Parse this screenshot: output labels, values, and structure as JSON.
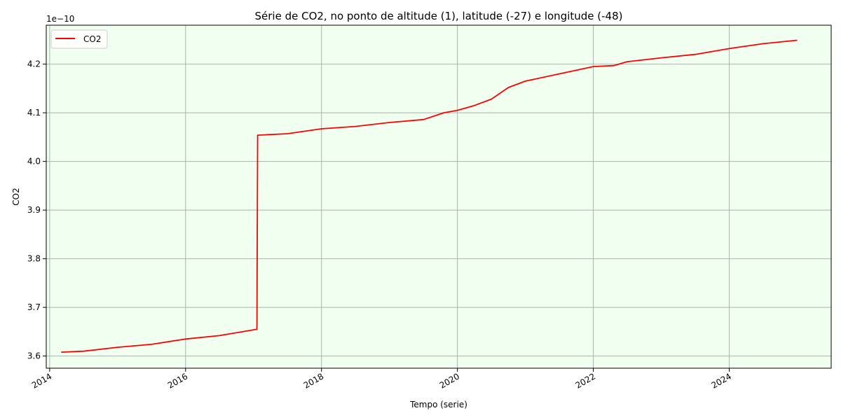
{
  "chart_data": {
    "type": "line",
    "title": "Série de CO2, no ponto de altitude (1), latitude (-27) e longitude (-48)",
    "xlabel": "Tempo (serie)",
    "ylabel": "CO2",
    "y_scale_label": "1e−10",
    "xlim": [
      2013.95,
      2025.5
    ],
    "ylim": [
      3.575,
      4.28
    ],
    "x_ticks": [
      2014,
      2016,
      2018,
      2020,
      2022,
      2024
    ],
    "x_tick_labels": [
      "2014",
      "2016",
      "2018",
      "2020",
      "2022",
      "2024"
    ],
    "y_ticks": [
      3.6,
      3.7,
      3.8,
      3.9,
      4.0,
      4.1,
      4.2
    ],
    "y_tick_labels": [
      "3.6",
      "3.7",
      "3.8",
      "3.9",
      "4.0",
      "4.1",
      "4.2"
    ],
    "grid": true,
    "legend_position": "upper-left",
    "colors": {
      "plot_background": "#f0fff0",
      "series": "#ff0000",
      "grid": "#a8b4ac"
    },
    "series": [
      {
        "name": "CO2",
        "x": [
          2014.17,
          2014.5,
          2015.0,
          2015.5,
          2016.0,
          2016.5,
          2017.05,
          2017.06,
          2017.5,
          2018.0,
          2018.5,
          2019.0,
          2019.5,
          2019.8,
          2020.0,
          2020.25,
          2020.5,
          2020.75,
          2021.0,
          2021.5,
          2022.0,
          2022.3,
          2022.5,
          2023.0,
          2023.5,
          2024.0,
          2024.5,
          2025.0
        ],
        "y": [
          3.608,
          3.61,
          3.618,
          3.624,
          3.635,
          3.642,
          3.655,
          4.054,
          4.057,
          4.067,
          4.072,
          4.08,
          4.086,
          4.1,
          4.105,
          4.115,
          4.128,
          4.152,
          4.165,
          4.18,
          4.195,
          4.197,
          4.205,
          4.213,
          4.22,
          4.232,
          4.242,
          4.249
        ]
      }
    ]
  }
}
